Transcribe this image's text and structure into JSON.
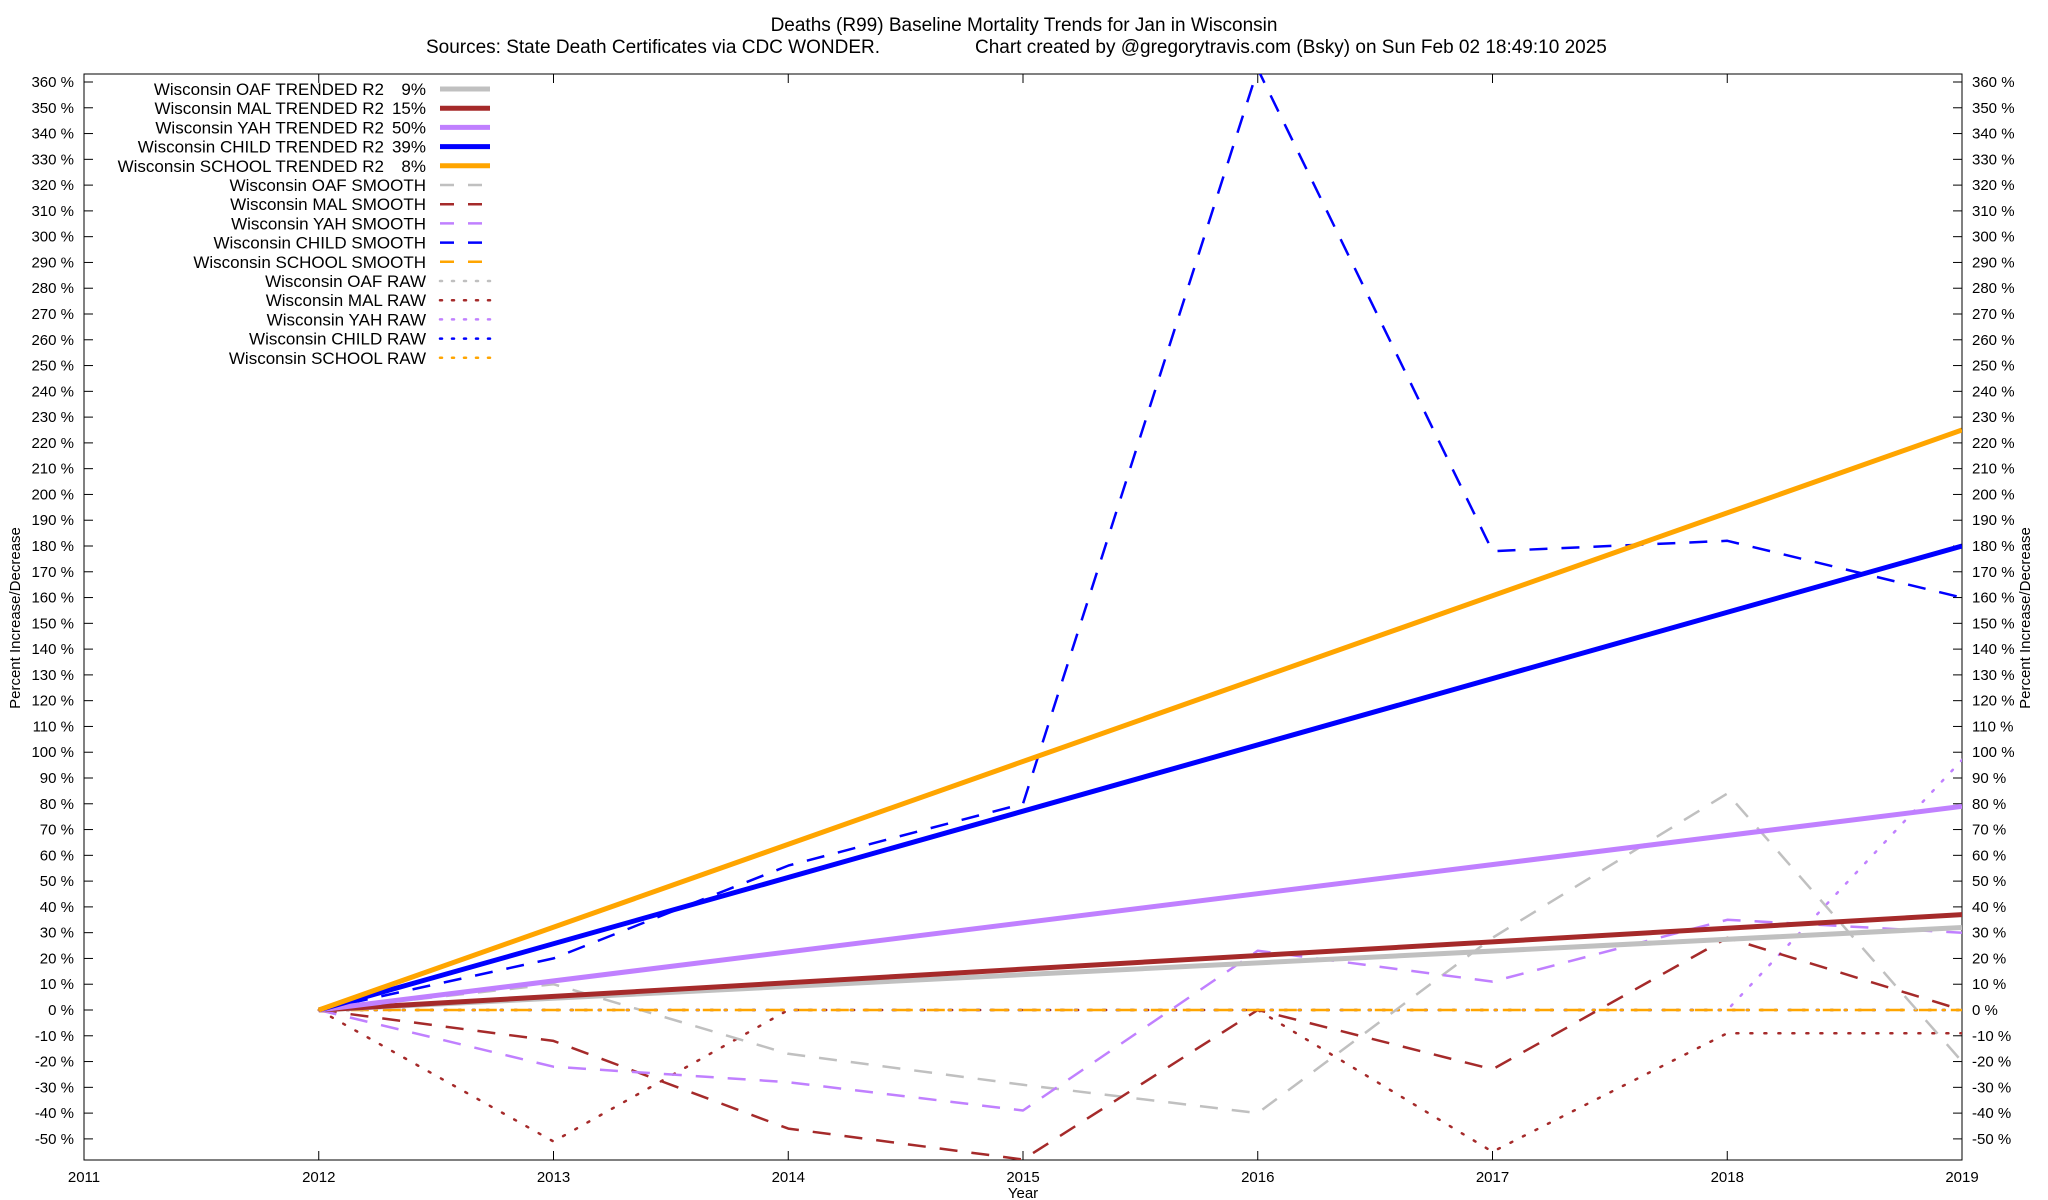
{
  "chart_data": {
    "type": "line",
    "title": "Deaths (R99)  Baseline Mortality Trends for Jan in Wisconsin",
    "subtitle_left": "Sources: State Death Certificates via CDC WONDER.",
    "subtitle_right": "Chart created by @gregorytravis.com (Bsky) on Sun Feb 02 18:49:10 2025",
    "xlabel": "Year",
    "ylabel": "Percent Increase/Decrease",
    "xlim": [
      2011,
      2019
    ],
    "ylim": [
      -60,
      365
    ],
    "x_ticks": [
      2011,
      2012,
      2013,
      2014,
      2015,
      2016,
      2017,
      2018,
      2019
    ],
    "y_ticks": [
      -50,
      -40,
      -30,
      -20,
      -10,
      0,
      10,
      20,
      30,
      40,
      50,
      60,
      70,
      80,
      90,
      100,
      110,
      120,
      130,
      140,
      150,
      160,
      170,
      180,
      190,
      200,
      210,
      220,
      230,
      240,
      250,
      260,
      270,
      280,
      290,
      300,
      310,
      320,
      330,
      340,
      350,
      360
    ],
    "y_tick_suffix": " %",
    "grid": false,
    "legend_position": "top-left",
    "series": [
      {
        "name": "Wisconsin OAF TRENDED R2",
        "r2": "9%",
        "style": "solid",
        "color": "#c0c0c0",
        "x": [
          2012,
          2019
        ],
        "y": [
          0,
          32
        ]
      },
      {
        "name": "Wisconsin MAL TRENDED R2",
        "r2": "15%",
        "style": "solid",
        "color": "#a52a2a",
        "x": [
          2012,
          2019
        ],
        "y": [
          0,
          37
        ]
      },
      {
        "name": "Wisconsin YAH TRENDED R2",
        "r2": "50%",
        "style": "solid",
        "color": "#c080ff",
        "x": [
          2012,
          2019
        ],
        "y": [
          0,
          79
        ]
      },
      {
        "name": "Wisconsin CHILD TRENDED R2",
        "r2": "39%",
        "style": "solid",
        "color": "#0000ff",
        "x": [
          2012,
          2019
        ],
        "y": [
          0,
          180
        ]
      },
      {
        "name": "Wisconsin SCHOOL TRENDED R2",
        "r2": "8%",
        "style": "solid",
        "color": "#ffa500",
        "x": [
          2012,
          2019
        ],
        "y": [
          0,
          225
        ]
      },
      {
        "name": "Wisconsin OAF SMOOTH",
        "style": "dashed",
        "color": "#c0c0c0",
        "x": [
          2012,
          2013,
          2014,
          2015,
          2016,
          2017,
          2018,
          2019
        ],
        "y": [
          0,
          10,
          -17,
          -29,
          -40,
          28,
          84,
          -20
        ]
      },
      {
        "name": "Wisconsin MAL SMOOTH",
        "style": "dashed",
        "color": "#a52a2a",
        "x": [
          2012,
          2013,
          2014,
          2015,
          2016,
          2017,
          2018,
          2019
        ],
        "y": [
          0,
          -12,
          -46,
          -58,
          0,
          -23,
          28,
          0
        ]
      },
      {
        "name": "Wisconsin YAH SMOOTH",
        "style": "dashed",
        "color": "#c080ff",
        "x": [
          2012,
          2013,
          2014,
          2015,
          2016,
          2017,
          2018,
          2019
        ],
        "y": [
          0,
          -22,
          -28,
          -39,
          23,
          11,
          35,
          30
        ]
      },
      {
        "name": "Wisconsin CHILD SMOOTH",
        "style": "dashed",
        "color": "#0000ff",
        "x": [
          2012,
          2013,
          2014,
          2015,
          2016,
          2017,
          2018,
          2019
        ],
        "y": [
          0,
          20,
          56,
          80,
          365,
          178,
          182,
          160
        ]
      },
      {
        "name": "Wisconsin SCHOOL SMOOTH",
        "style": "dashed",
        "color": "#ffa500",
        "x": [
          2012,
          2013,
          2014,
          2015,
          2016,
          2017,
          2018,
          2019
        ],
        "y": [
          0,
          0,
          0,
          0,
          0,
          0,
          0,
          0
        ]
      },
      {
        "name": "Wisconsin OAF RAW",
        "style": "dotted",
        "color": "#c0c0c0",
        "x": [
          2012,
          2013,
          2014,
          2015,
          2016,
          2017,
          2018,
          2019
        ],
        "y": [
          0,
          0,
          0,
          0,
          0,
          0,
          0,
          0
        ]
      },
      {
        "name": "Wisconsin MAL RAW",
        "style": "dotted",
        "color": "#a52a2a",
        "x": [
          2012,
          2013,
          2014,
          2015,
          2016,
          2017,
          2018,
          2019
        ],
        "y": [
          0,
          -51,
          0,
          0,
          0,
          -55,
          -9,
          -9
        ]
      },
      {
        "name": "Wisconsin YAH RAW",
        "style": "dotted",
        "color": "#c080ff",
        "x": [
          2012,
          2013,
          2014,
          2015,
          2016,
          2017,
          2018,
          2019
        ],
        "y": [
          0,
          0,
          0,
          0,
          0,
          0,
          0,
          97
        ]
      },
      {
        "name": "Wisconsin CHILD RAW",
        "style": "dotted",
        "color": "#0000ff",
        "x": [
          2012,
          2013,
          2014,
          2015,
          2016,
          2017,
          2018,
          2019
        ],
        "y": [
          0,
          0,
          0,
          0,
          0,
          0,
          0,
          0
        ]
      },
      {
        "name": "Wisconsin SCHOOL RAW",
        "style": "dotted",
        "color": "#ffa500",
        "x": [
          2012,
          2013,
          2014,
          2015,
          2016,
          2017,
          2018,
          2019
        ],
        "y": [
          0,
          0,
          0,
          0,
          0,
          0,
          0,
          0
        ]
      }
    ]
  }
}
